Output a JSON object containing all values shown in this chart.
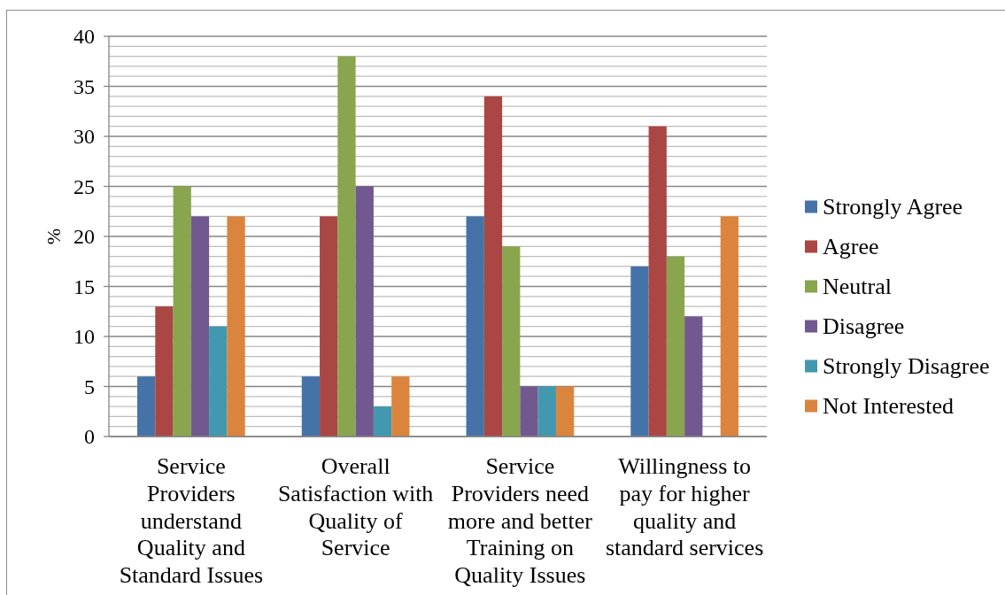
{
  "chart_data": {
    "type": "bar",
    "ylabel": "%",
    "categories": [
      "Service Providers understand Quality and Standard Issues",
      "Overall Satisfaction with Quality of Service",
      "Service Providers need more and better Training on Quality Issues",
      "Willingness to pay for higher quality and standard services"
    ],
    "series": [
      {
        "name": "Strongly Agree",
        "color": "#4572a7",
        "values": [
          6,
          6,
          22,
          17
        ]
      },
      {
        "name": "Agree",
        "color": "#aa4643",
        "values": [
          13,
          22,
          34,
          31
        ]
      },
      {
        "name": "Neutral",
        "color": "#89a54e",
        "values": [
          25,
          38,
          19,
          18
        ]
      },
      {
        "name": "Disagree",
        "color": "#71588f",
        "values": [
          22,
          25,
          5,
          12
        ]
      },
      {
        "name": "Strongly Disagree",
        "color": "#4198af",
        "values": [
          11,
          3,
          5,
          null
        ]
      },
      {
        "name": "Not Interested",
        "color": "#db843d",
        "values": [
          22,
          6,
          5,
          22
        ]
      }
    ],
    "ylim": [
      0,
      40
    ],
    "yticks": [
      0,
      {
        "value": 1,
        "label": null
      },
      {
        "value": 2,
        "label": null
      },
      {
        "value": 3,
        "label": null
      },
      {
        "value": 4,
        "label": null
      },
      5,
      {
        "value": 6,
        "label": null
      },
      {
        "value": 7,
        "label": null
      },
      {
        "value": 8,
        "label": null
      },
      {
        "value": 9,
        "label": null
      },
      10,
      {
        "value": 11,
        "label": null
      },
      {
        "value": 12,
        "label": null
      },
      {
        "value": 13,
        "label": null
      },
      {
        "value": 14,
        "label": null
      },
      15,
      {
        "value": 16,
        "label": null
      },
      {
        "value": 17,
        "label": null
      },
      {
        "value": 18,
        "label": null
      },
      {
        "value": 19,
        "label": null
      },
      20,
      {
        "value": 21,
        "label": null
      },
      {
        "value": 22,
        "label": null
      },
      {
        "value": 23,
        "label": null
      },
      {
        "value": 24,
        "label": null
      },
      25,
      {
        "value": 26,
        "label": null
      },
      {
        "value": 27,
        "label": null
      },
      {
        "value": 28,
        "label": null
      },
      {
        "value": 29,
        "label": null
      },
      30,
      {
        "value": 31,
        "label": null
      },
      {
        "value": 32,
        "label": null
      },
      {
        "value": 33,
        "label": null
      },
      {
        "value": 34,
        "label": null
      },
      35,
      {
        "value": 36,
        "label": null
      },
      {
        "value": 37,
        "label": null
      },
      {
        "value": 38,
        "label": null
      },
      {
        "value": 39,
        "label": null
      },
      40
    ],
    "grid": true,
    "legend": "right"
  }
}
